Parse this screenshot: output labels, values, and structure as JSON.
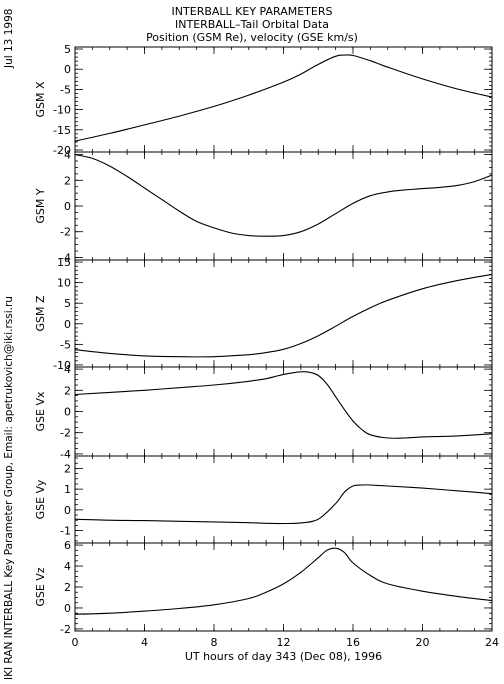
{
  "header": {
    "title1": "INTERBALL KEY PARAMETERS",
    "title2": "INTERBALL–Tail Orbital Data",
    "title3": "Position (GSM Re), velocity (GSE km/s)"
  },
  "side": {
    "date": "Jul 13 1998",
    "credit": "IKI RAN INTERBALL Key Parameter Group, Email: apetrukovich@iki.rssi.ru"
  },
  "chart_data": {
    "type": "line",
    "xlabel": "UT hours of day 343 (Dec 08), 1996",
    "x_range": [
      0,
      24
    ],
    "x_ticks": [
      0,
      4,
      8,
      12,
      16,
      20,
      24
    ],
    "x_tick_labels": [
      "0",
      "4",
      "8",
      "12",
      "16",
      "20",
      "24"
    ],
    "x_minor_step": 1,
    "panels": [
      {
        "ylabel": "GSM X",
        "ylim": [
          -20.5,
          5.5
        ],
        "y_ticks": [
          5,
          0,
          -5,
          -10,
          -15,
          -20
        ],
        "y_minor_step": 1,
        "x": [
          0,
          2,
          4,
          6,
          8,
          10,
          12,
          13,
          14,
          15,
          15.5,
          16,
          17,
          18,
          20,
          22,
          24
        ],
        "y": [
          -17.8,
          -15.9,
          -13.8,
          -11.6,
          -9.2,
          -6.4,
          -3.2,
          -1.2,
          1.2,
          3.2,
          3.5,
          3.4,
          2.1,
          0.5,
          -2.4,
          -4.9,
          -6.9
        ]
      },
      {
        "ylabel": "GSM Y",
        "ylim": [
          -4.2,
          4.2
        ],
        "y_ticks": [
          4,
          2,
          0,
          -2,
          -4
        ],
        "y_minor_step": 0.5,
        "x": [
          0,
          1,
          2,
          3,
          4,
          5,
          6,
          7,
          8,
          9,
          10,
          11,
          12,
          13,
          14,
          15,
          16,
          17,
          18,
          19,
          20,
          21,
          22,
          23,
          24
        ],
        "y": [
          4.0,
          3.7,
          3.1,
          2.3,
          1.4,
          0.5,
          -0.4,
          -1.2,
          -1.7,
          -2.1,
          -2.3,
          -2.35,
          -2.3,
          -2.0,
          -1.4,
          -0.6,
          0.2,
          0.8,
          1.1,
          1.25,
          1.35,
          1.45,
          1.6,
          1.9,
          2.4
        ]
      },
      {
        "ylabel": "GSM Z",
        "ylim": [
          -10.5,
          15.5
        ],
        "y_ticks": [
          15,
          10,
          5,
          0,
          -5,
          -10
        ],
        "y_minor_step": 1,
        "x": [
          0,
          2,
          4,
          6,
          8,
          10,
          11,
          12,
          13,
          14,
          15,
          16,
          17,
          18,
          20,
          22,
          24
        ],
        "y": [
          -6.3,
          -7.2,
          -7.8,
          -8.0,
          -8.0,
          -7.5,
          -7.0,
          -6.2,
          -4.8,
          -2.9,
          -0.6,
          1.8,
          3.9,
          5.7,
          8.5,
          10.5,
          12.0
        ]
      },
      {
        "ylabel": "GSE Vx",
        "ylim": [
          -4.2,
          4.2
        ],
        "y_ticks": [
          4,
          2,
          0,
          -2,
          -4
        ],
        "y_minor_step": 0.5,
        "x": [
          0,
          2,
          4,
          6,
          8,
          10,
          11,
          12,
          13,
          13.5,
          14,
          14.5,
          15,
          15.5,
          16,
          16.5,
          17,
          18,
          19,
          20,
          22,
          24
        ],
        "y": [
          1.6,
          1.8,
          2.0,
          2.25,
          2.5,
          2.85,
          3.1,
          3.5,
          3.75,
          3.7,
          3.4,
          2.6,
          1.4,
          0.2,
          -0.9,
          -1.7,
          -2.2,
          -2.5,
          -2.5,
          -2.4,
          -2.3,
          -2.1
        ]
      },
      {
        "ylabel": "GSE Vy",
        "ylim": [
          -1.6,
          2.6
        ],
        "y_ticks": [
          2,
          1,
          0,
          -1
        ],
        "y_minor_step": 0.25,
        "x": [
          0,
          2,
          4,
          6,
          8,
          10,
          11,
          12,
          13,
          14,
          15,
          15.5,
          16,
          16.5,
          17,
          18,
          20,
          22,
          24
        ],
        "y": [
          -0.45,
          -0.5,
          -0.52,
          -0.55,
          -0.58,
          -0.62,
          -0.65,
          -0.66,
          -0.63,
          -0.45,
          0.3,
          0.85,
          1.15,
          1.2,
          1.2,
          1.15,
          1.05,
          0.92,
          0.78
        ]
      },
      {
        "ylabel": "GSE Vz",
        "ylim": [
          -2.2,
          6.2
        ],
        "y_ticks": [
          6,
          4,
          2,
          0,
          -2
        ],
        "y_minor_step": 0.5,
        "x": [
          0,
          2,
          4,
          6,
          8,
          10,
          11,
          12,
          13,
          14,
          14.5,
          15,
          15.5,
          16,
          17,
          18,
          20,
          22,
          24
        ],
        "y": [
          -0.6,
          -0.5,
          -0.3,
          -0.05,
          0.3,
          0.9,
          1.5,
          2.3,
          3.4,
          4.8,
          5.5,
          5.7,
          5.3,
          4.3,
          3.1,
          2.3,
          1.6,
          1.1,
          0.7
        ]
      }
    ]
  }
}
